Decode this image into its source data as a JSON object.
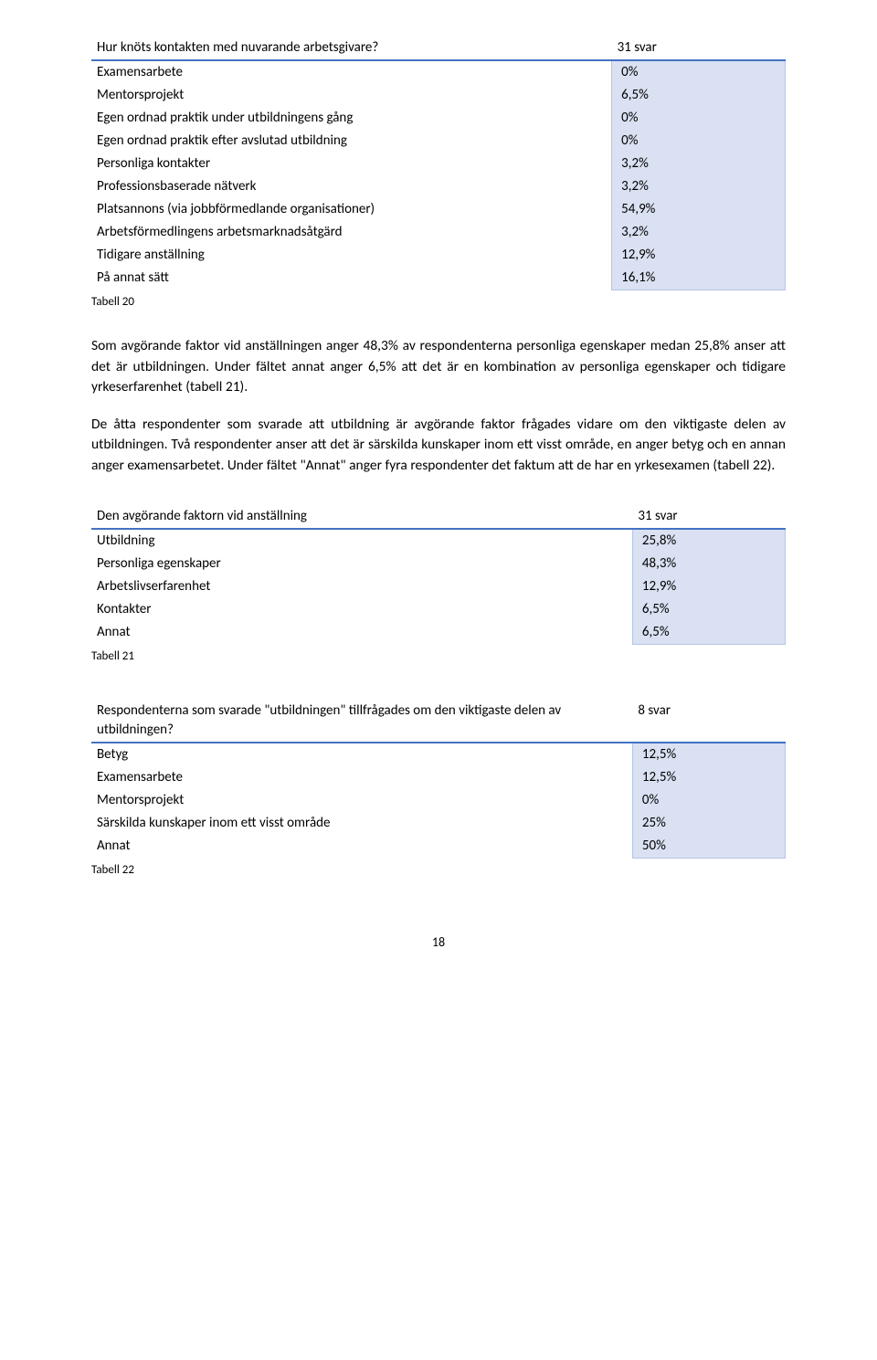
{
  "table20": {
    "title": "Hur knöts kontakten med nuvarande arbetsgivare?",
    "title_count": "31 svar",
    "rows": [
      {
        "label": "Examensarbete",
        "value": "0%"
      },
      {
        "label": "Mentorsprojekt",
        "value": "6,5%"
      },
      {
        "label": "Egen ordnad praktik under utbildningens gång",
        "value": "0%"
      },
      {
        "label": "Egen ordnad praktik efter avslutad utbildning",
        "value": "0%"
      },
      {
        "label": "Personliga kontakter",
        "value": "3,2%"
      },
      {
        "label": "Professionsbaserade nätverk",
        "value": "3,2%"
      },
      {
        "label": "Platsannons (via jobbförmedlande organisationer)",
        "value": "54,9%"
      },
      {
        "label": "Arbetsförmedlingens arbetsmarknadsåtgärd",
        "value": "3,2%"
      },
      {
        "label": "Tidigare anställning",
        "value": "12,9%"
      },
      {
        "label": "På annat sätt",
        "value": "16,1%"
      }
    ],
    "caption": "Tabell 20"
  },
  "para1": "Som avgörande faktor vid anställningen anger 48,3% av respondenterna personliga egenskaper medan 25,8% anser att det är utbildningen. Under fältet annat anger 6,5% att det är en kombination av personliga egenskaper och tidigare yrkeserfarenhet (tabell 21).",
  "para2": "De åtta respondenter som svarade att utbildning är avgörande faktor frågades vidare om den viktigaste delen av utbildningen. Två respondenter anser att det är särskilda kunskaper inom ett visst område, en anger betyg och en annan anger examensarbetet. Under fältet \"Annat\" anger fyra respondenter det faktum att de har en yrkesexamen (tabell 22).",
  "table21": {
    "title": "Den avgörande faktorn vid anställning",
    "title_count": "31 svar",
    "rows": [
      {
        "label": "Utbildning",
        "value": "25,8%"
      },
      {
        "label": "Personliga egenskaper",
        "value": "48,3%"
      },
      {
        "label": "Arbetslivserfarenhet",
        "value": "12,9%"
      },
      {
        "label": "Kontakter",
        "value": "6,5%"
      },
      {
        "label": "Annat",
        "value": "6,5%"
      }
    ],
    "caption": "Tabell 21"
  },
  "table22": {
    "title": "Respondenterna som svarade \"utbildningen\" tillfrågades om den viktigaste delen av utbildningen?",
    "title_count": "8 svar",
    "rows": [
      {
        "label": "Betyg",
        "value": "12,5%"
      },
      {
        "label": "Examensarbete",
        "value": "12,5%"
      },
      {
        "label": "Mentorsprojekt",
        "value": "0%"
      },
      {
        "label": "Särskilda kunskaper inom ett visst område",
        "value": "25%"
      },
      {
        "label": "Annat",
        "value": "50%"
      }
    ],
    "caption": "Tabell 22"
  },
  "page_number": "18",
  "colors": {
    "header_border": "#4472c4",
    "cell_bg": "#d9e1f2",
    "cell_border": "#b4c6e7",
    "text": "#000000",
    "background": "#ffffff"
  }
}
